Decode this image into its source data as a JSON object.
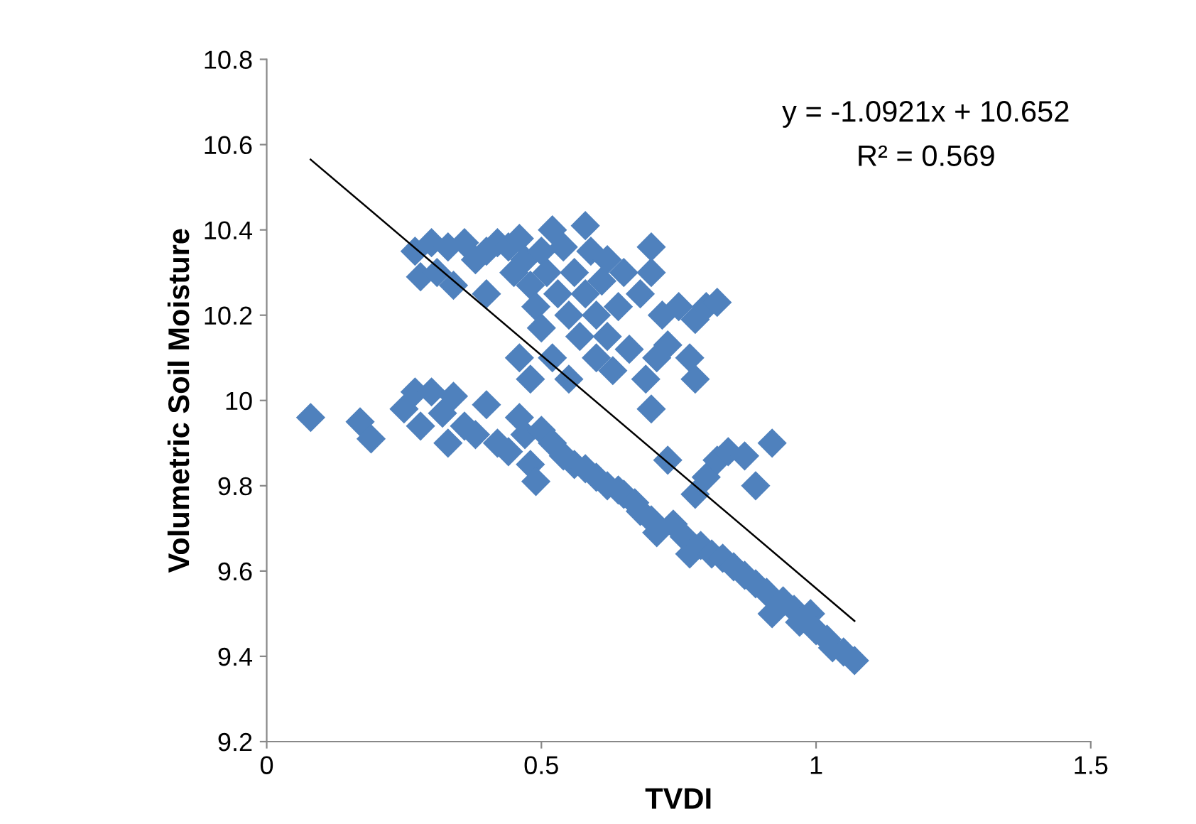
{
  "chart_data": {
    "type": "scatter",
    "xlabel": "TVDI",
    "ylabel": "Volumetric Soil Moisture",
    "xlim": [
      0,
      1.5
    ],
    "xticks": [
      0,
      0.5,
      1,
      1.5
    ],
    "ylim": [
      9.2,
      10.8
    ],
    "yticks": [
      9.2,
      9.4,
      9.6,
      9.8,
      10,
      10.2,
      10.4,
      10.6,
      10.8
    ],
    "grid": false,
    "legend": false,
    "annotations": [
      "y = -1.0921x + 10.652",
      "R² = 0.569"
    ],
    "series": [
      {
        "marker": "diamond",
        "color": "#4f81bd",
        "x": [
          0.27,
          0.28,
          0.3,
          0.31,
          0.33,
          0.34,
          0.36,
          0.38,
          0.4,
          0.4,
          0.42,
          0.44,
          0.45,
          0.46,
          0.47,
          0.48,
          0.49,
          0.5,
          0.5,
          0.51,
          0.52,
          0.52,
          0.53,
          0.54,
          0.55,
          0.55,
          0.56,
          0.57,
          0.58,
          0.58,
          0.59,
          0.6,
          0.6,
          0.61,
          0.62,
          0.62,
          0.63,
          0.64,
          0.65,
          0.66,
          0.68,
          0.69,
          0.7,
          0.7,
          0.7,
          0.71,
          0.72,
          0.73,
          0.75,
          0.77,
          0.78,
          0.78,
          0.8,
          0.82,
          0.46,
          0.48,
          0.08,
          0.17,
          0.19,
          0.25,
          0.27,
          0.28,
          0.3,
          0.32,
          0.33,
          0.34,
          0.36,
          0.38,
          0.4,
          0.42,
          0.44,
          0.46,
          0.47,
          0.48,
          0.49,
          0.5,
          0.52,
          0.54,
          0.56,
          0.58,
          0.6,
          0.62,
          0.64,
          0.65,
          0.67,
          0.68,
          0.7,
          0.71,
          0.73,
          0.74,
          0.76,
          0.77,
          0.78,
          0.79,
          0.8,
          0.81,
          0.82,
          0.83,
          0.84,
          0.85,
          0.87,
          0.87,
          0.89,
          0.89,
          0.91,
          0.92,
          0.92,
          0.94,
          0.96,
          0.97,
          0.99,
          1.0,
          1.02,
          1.03,
          1.05,
          1.07
        ],
        "values": [
          10.35,
          10.29,
          10.37,
          10.3,
          10.36,
          10.27,
          10.37,
          10.33,
          10.35,
          10.25,
          10.37,
          10.36,
          10.3,
          10.38,
          10.33,
          10.27,
          10.22,
          10.35,
          10.17,
          10.3,
          10.4,
          10.1,
          10.25,
          10.36,
          10.2,
          10.05,
          10.3,
          10.15,
          10.41,
          10.25,
          10.35,
          10.1,
          10.2,
          10.28,
          10.33,
          10.15,
          10.07,
          10.22,
          10.3,
          10.12,
          10.25,
          10.05,
          10.36,
          10.3,
          9.98,
          10.1,
          10.2,
          10.13,
          10.22,
          10.1,
          10.05,
          10.19,
          10.22,
          10.23,
          10.1,
          10.05,
          9.96,
          9.95,
          9.91,
          9.98,
          10.02,
          9.94,
          10.02,
          9.97,
          9.9,
          10.01,
          9.94,
          9.92,
          9.99,
          9.9,
          9.88,
          9.96,
          9.92,
          9.85,
          9.81,
          9.93,
          9.9,
          9.87,
          9.85,
          9.84,
          9.82,
          9.8,
          9.79,
          9.78,
          9.76,
          9.74,
          9.72,
          9.69,
          9.86,
          9.71,
          9.68,
          9.64,
          9.78,
          9.66,
          9.82,
          9.64,
          9.86,
          9.63,
          9.88,
          9.61,
          9.87,
          9.59,
          9.8,
          9.57,
          9.55,
          9.9,
          9.5,
          9.53,
          9.51,
          9.48,
          9.5,
          9.46,
          9.44,
          9.42,
          9.41,
          9.39
        ]
      },
      {
        "type": "line",
        "marker": "none",
        "color": "#000000",
        "x": [
          0.08,
          1.07
        ],
        "values": [
          10.565,
          9.483
        ]
      }
    ]
  }
}
